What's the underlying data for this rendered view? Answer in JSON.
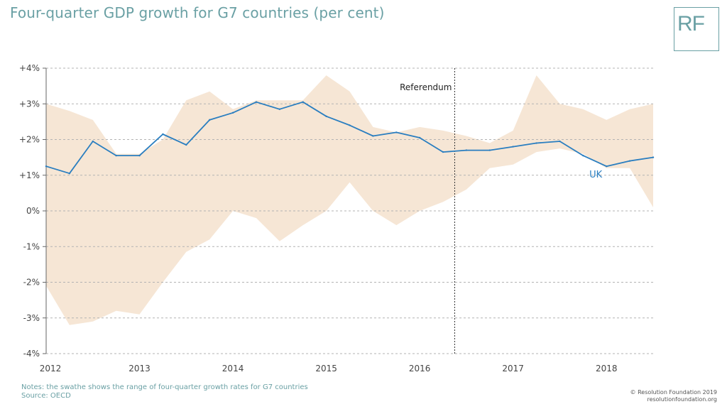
{
  "title": "Four-quarter GDP growth for G7 countries (per cent)",
  "logo_text": "RF",
  "notes": "Notes: the swathe shows the range of four-quarter growth rates for G7 countries",
  "source": "Source: OECD",
  "copyright": "© Resolution Foundation 2019",
  "website": "resolutionfoundation.org",
  "colors": {
    "title": "#6aa0a4",
    "uk_line": "#2a7ec0",
    "swathe": "#f6e6d5",
    "grid": "#b3b3b3"
  },
  "chart_data": {
    "type": "area",
    "title": "Four-quarter GDP growth for G7 countries (per cent)",
    "x": [
      "2012 Q1",
      "2012 Q2",
      "2012 Q3",
      "2012 Q4",
      "2013 Q1",
      "2013 Q2",
      "2013 Q3",
      "2013 Q4",
      "2014 Q1",
      "2014 Q2",
      "2014 Q3",
      "2014 Q4",
      "2015 Q1",
      "2015 Q2",
      "2015 Q3",
      "2015 Q4",
      "2016 Q1",
      "2016 Q2",
      "2016 Q3",
      "2016 Q4",
      "2017 Q1",
      "2017 Q2",
      "2017 Q3",
      "2017 Q4",
      "2018 Q1",
      "2018 Q2",
      "2018 Q3"
    ],
    "series": [
      {
        "name": "UK",
        "type": "line",
        "values": [
          1.25,
          1.05,
          1.95,
          1.55,
          1.55,
          2.15,
          1.85,
          2.55,
          2.75,
          3.05,
          2.85,
          3.05,
          2.65,
          2.4,
          2.1,
          2.2,
          2.05,
          1.65,
          1.7,
          1.7,
          1.8,
          1.9,
          1.95,
          1.55,
          1.25,
          1.4,
          1.5
        ]
      },
      {
        "name": "G7 maximum",
        "type": "band-upper",
        "values": [
          3.0,
          2.8,
          2.55,
          1.6,
          1.6,
          2.0,
          3.1,
          3.35,
          2.85,
          3.1,
          3.1,
          3.1,
          3.8,
          3.35,
          2.35,
          2.2,
          2.35,
          2.25,
          2.1,
          1.9,
          2.25,
          3.8,
          3.0,
          2.85,
          2.55,
          2.85,
          3.0
        ]
      },
      {
        "name": "G7 minimum",
        "type": "band-lower",
        "values": [
          -2.1,
          -3.2,
          -3.1,
          -2.8,
          -2.9,
          -2.0,
          -1.15,
          -0.8,
          0.0,
          -0.2,
          -0.85,
          -0.4,
          0.0,
          0.8,
          0.0,
          -0.4,
          0.0,
          0.25,
          0.6,
          1.2,
          1.3,
          1.65,
          1.75,
          1.6,
          1.2,
          1.2,
          0.1
        ]
      }
    ],
    "x_tick_labels": [
      "2012",
      "2013",
      "2014",
      "2015",
      "2016",
      "2017",
      "2018"
    ],
    "y_tick_labels": [
      "+4%",
      "+3%",
      "+2%",
      "+1%",
      "0%",
      "-1%",
      "-2%",
      "-3%",
      "-4%"
    ],
    "y_ticks": [
      4,
      3,
      2,
      1,
      0,
      -1,
      -2,
      -3,
      -4
    ],
    "ylim": [
      -4,
      4
    ],
    "grid": true,
    "annotations": [
      {
        "text": "Referendum",
        "x": "2016 Q3"
      },
      {
        "text": "UK",
        "x": "2018 Q1",
        "y": 1.0
      }
    ]
  }
}
